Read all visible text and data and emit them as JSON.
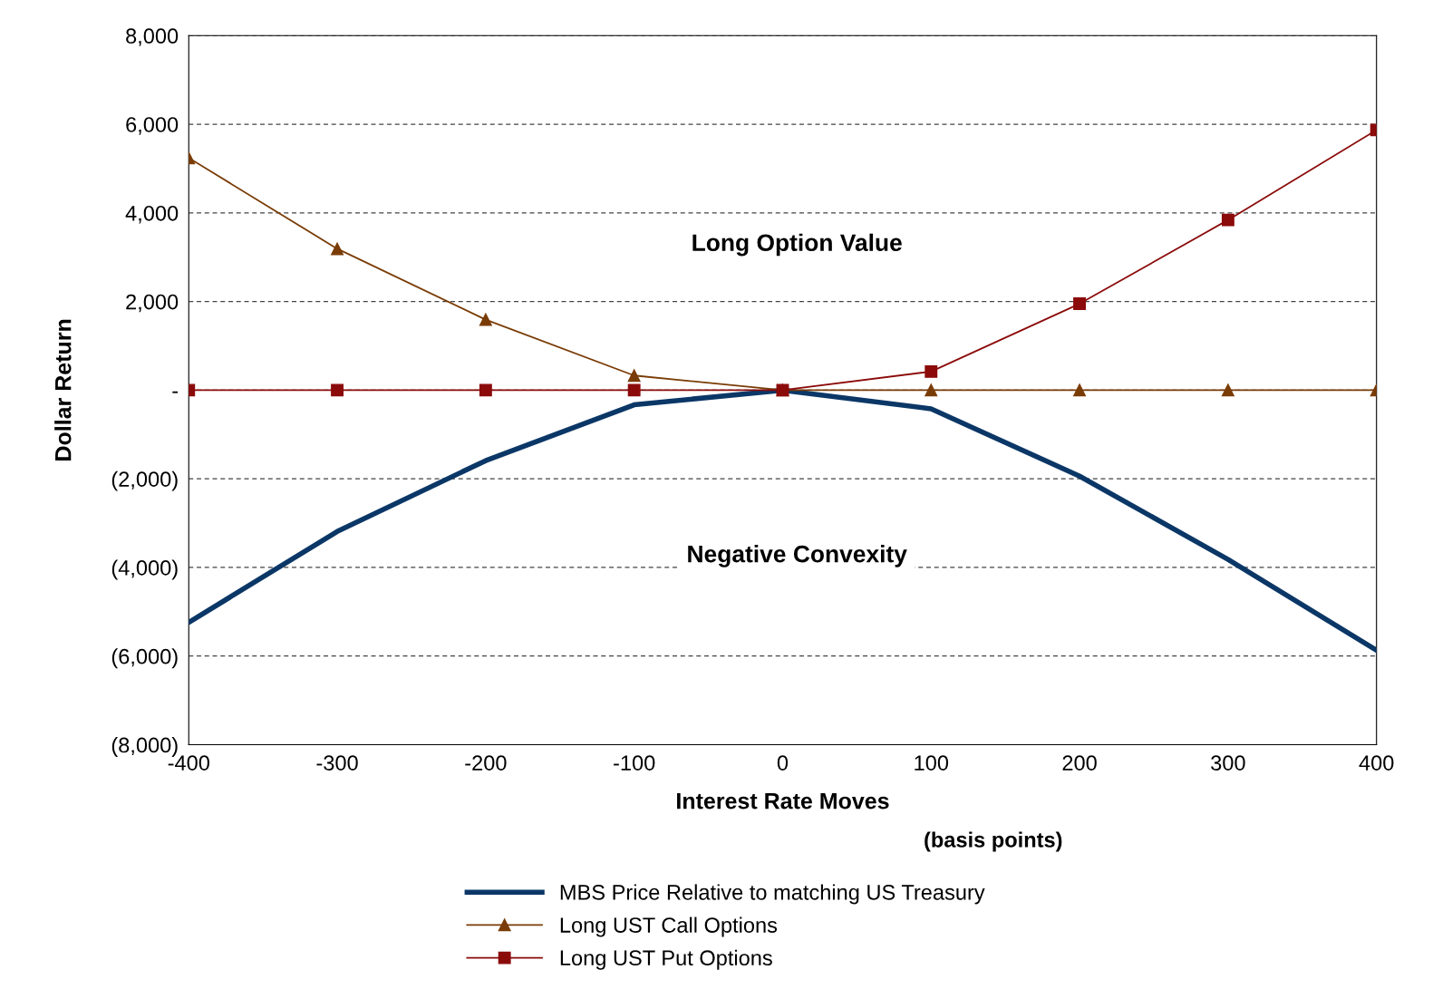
{
  "chart_data": {
    "type": "line",
    "xlabel": "Interest Rate Moves",
    "ylabel": "Dollar Return",
    "x": [
      -400,
      -300,
      -200,
      -100,
      0,
      100,
      200,
      300,
      400
    ],
    "xlim": [
      -400,
      400
    ],
    "xticks": [
      -400,
      -300,
      -200,
      -100,
      0,
      100,
      200,
      300,
      400
    ],
    "ylim": [
      -8000,
      8000
    ],
    "yticks": [
      {
        "value": -8000,
        "label": "(8,000)"
      },
      {
        "value": -6000,
        "label": "(6,000)"
      },
      {
        "value": -4000,
        "label": "(4,000)"
      },
      {
        "value": -2000,
        "label": "(2,000)"
      },
      {
        "value": 0,
        "label": "-"
      },
      {
        "value": 2000,
        "label": "2,000"
      },
      {
        "value": 4000,
        "label": "4,000"
      },
      {
        "value": 6000,
        "label": "6,000"
      },
      {
        "value": 8000,
        "label": "8,000"
      }
    ],
    "grid": "y",
    "legend": "bottom",
    "series": [
      {
        "name": "MBS Price Relative to matching US Treasury",
        "color": "#0b3767",
        "marker": "none",
        "values": [
          -5240,
          -3190,
          -1590,
          -330,
          0,
          -420,
          -1940,
          -3820,
          -5870
        ]
      },
      {
        "name": "Long UST Call Options",
        "color": "#7a3c06",
        "marker": "triangle",
        "values": [
          5240,
          3190,
          1590,
          330,
          0,
          0,
          0,
          0,
          0
        ]
      },
      {
        "name": "Long UST Put Options",
        "color": "#8b0a0a",
        "marker": "square",
        "values": [
          0,
          0,
          0,
          0,
          0,
          420,
          1950,
          3840,
          5870
        ]
      }
    ],
    "annotations": [
      "Long Option Value",
      "Negative Convexity",
      "(basis points)"
    ]
  }
}
